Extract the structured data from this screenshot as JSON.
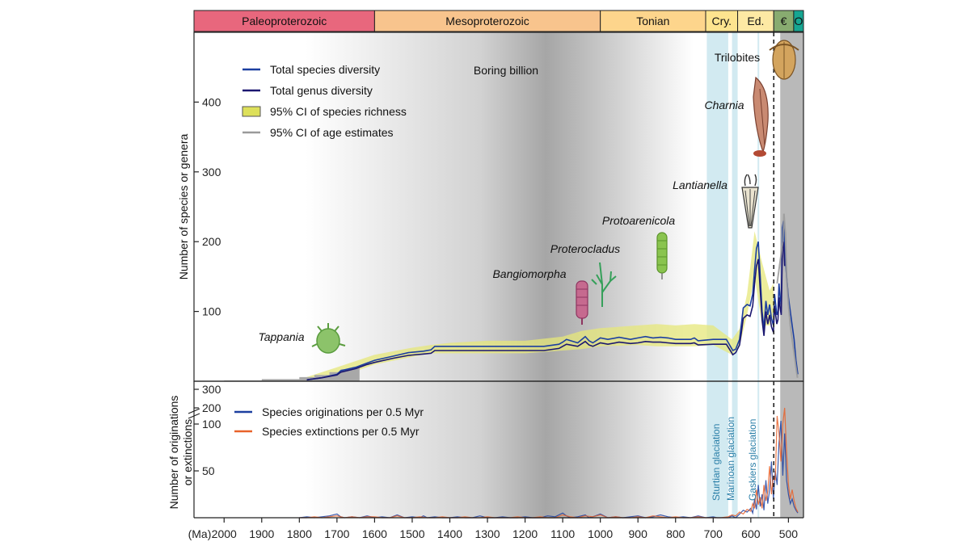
{
  "chart_data": {
    "type": "line",
    "x_unit_label": "(Ma)",
    "xlim": [
      2080,
      460
    ],
    "x_ticks": [
      2000,
      1900,
      1800,
      1700,
      1600,
      1500,
      1400,
      1300,
      1200,
      1100,
      1000,
      900,
      800,
      700,
      600,
      500
    ],
    "periods": [
      {
        "name": "Paleoproterozoic",
        "start": 2080,
        "end": 1600,
        "color": "#e8677d"
      },
      {
        "name": "Mesoproterozoic",
        "start": 1600,
        "end": 1000,
        "color": "#f8c48d"
      },
      {
        "name": "Tonian",
        "start": 1000,
        "end": 720,
        "color": "#fdd58c"
      },
      {
        "name": "Cry.",
        "start": 720,
        "end": 635,
        "color": "#fde48f"
      },
      {
        "name": "Ed.",
        "start": 635,
        "end": 539,
        "color": "#fde9a4"
      },
      {
        "name": "€",
        "start": 539,
        "end": 486,
        "color": "#88ab70"
      },
      {
        "name": "O",
        "start": 486,
        "end": 460,
        "color": "#16a692"
      }
    ],
    "top_panel": {
      "ylabel": "Number of species or genera",
      "ylim": [
        0,
        500
      ],
      "y_ticks": [
        100,
        200,
        300,
        400
      ],
      "legend": [
        {
          "label": "Total species diversity",
          "color": "#1c3fa0",
          "kind": "line"
        },
        {
          "label": "Total genus diversity",
          "color": "#1b1770",
          "kind": "line"
        },
        {
          "label": "95% CI of species richness",
          "color": "#dde05a",
          "kind": "box"
        },
        {
          "label": "95% CI of age estimates",
          "color": "#9a9a9a",
          "kind": "line"
        }
      ],
      "series": [
        {
          "name": "Total species diversity",
          "color": "#1c3fa0",
          "x": [
            1780,
            1740,
            1700,
            1690,
            1650,
            1620,
            1600,
            1550,
            1510,
            1470,
            1450,
            1440,
            1400,
            1350,
            1300,
            1250,
            1200,
            1150,
            1110,
            1100,
            1090,
            1060,
            1040,
            1030,
            1020,
            1000,
            980,
            950,
            920,
            900,
            880,
            860,
            840,
            820,
            800,
            780,
            760,
            750,
            740,
            700,
            680,
            665,
            650,
            648,
            640,
            630,
            625,
            620,
            610,
            602,
            595,
            590,
            585,
            580,
            575,
            570,
            565,
            560,
            555,
            550,
            545,
            540,
            537,
            534,
            531,
            528,
            525,
            522,
            519,
            516,
            513,
            510,
            505,
            500,
            495,
            490,
            485,
            480,
            475
          ],
          "y": [
            2,
            5,
            10,
            15,
            20,
            26,
            30,
            36,
            41,
            43,
            45,
            50,
            50,
            50,
            50,
            50,
            50,
            50,
            53,
            56,
            60,
            55,
            64,
            58,
            55,
            62,
            60,
            63,
            60,
            62,
            64,
            62,
            63,
            62,
            60,
            60,
            60,
            62,
            58,
            60,
            60,
            60,
            46,
            44,
            46,
            60,
            82,
            105,
            110,
            108,
            125,
            160,
            190,
            200,
            150,
            100,
            75,
            115,
            95,
            110,
            90,
            80,
            125,
            110,
            95,
            100,
            140,
            120,
            110,
            220,
            230,
            190,
            150,
            120,
            100,
            80,
            60,
            30,
            10
          ]
        },
        {
          "name": "Total genus diversity",
          "color": "#1b1770",
          "x": [
            1780,
            1740,
            1700,
            1690,
            1650,
            1620,
            1600,
            1550,
            1510,
            1470,
            1450,
            1440,
            1400,
            1350,
            1300,
            1250,
            1200,
            1150,
            1110,
            1100,
            1090,
            1060,
            1040,
            1030,
            1020,
            1000,
            980,
            950,
            920,
            900,
            880,
            860,
            840,
            820,
            800,
            780,
            760,
            750,
            740,
            700,
            680,
            665,
            650,
            648,
            640,
            630,
            625,
            620,
            610,
            602,
            595,
            590,
            585,
            580,
            575,
            570,
            565,
            560,
            555,
            550,
            545,
            540,
            537,
            534,
            531,
            528,
            525,
            522,
            519,
            516,
            513,
            510
          ],
          "y": [
            2,
            5,
            9,
            13,
            18,
            24,
            27,
            33,
            37,
            39,
            40,
            44,
            44,
            44,
            44,
            44,
            44,
            44,
            47,
            50,
            53,
            50,
            57,
            52,
            50,
            55,
            53,
            56,
            54,
            55,
            57,
            56,
            56,
            55,
            54,
            54,
            54,
            55,
            52,
            53,
            53,
            53,
            40,
            38,
            41,
            52,
            70,
            90,
            95,
            93,
            108,
            140,
            165,
            175,
            130,
            88,
            65,
            100,
            82,
            95,
            78,
            70,
            108,
            95,
            82,
            88,
            120,
            105,
            95,
            190,
            200,
            165
          ]
        },
        {
          "name": "95% CI of age estimates",
          "color": "#9a9a9a",
          "x": [
            530,
            525,
            520,
            515,
            512,
            508,
            505,
            500,
            495,
            490,
            485,
            480,
            476
          ],
          "y": [
            140,
            160,
            180,
            200,
            240,
            210,
            150,
            110,
            80,
            60,
            40,
            20,
            5
          ]
        }
      ],
      "ci_band": {
        "name": "95% CI of species richness",
        "color": "#e5e77a",
        "x": [
          1780,
          1700,
          1600,
          1500,
          1450,
          1400,
          1300,
          1200,
          1100,
          1050,
          1000,
          900,
          850,
          800,
          750,
          700,
          650,
          630,
          610,
          590,
          570,
          550,
          540
        ],
        "lower": [
          0,
          5,
          24,
          35,
          40,
          40,
          40,
          40,
          44,
          46,
          50,
          52,
          50,
          50,
          50,
          52,
          38,
          50,
          95,
          150,
          80,
          80,
          95
        ],
        "upper": [
          6,
          20,
          38,
          48,
          52,
          55,
          58,
          58,
          64,
          72,
          76,
          80,
          82,
          80,
          82,
          80,
          60,
          75,
          125,
          215,
          170,
          130,
          140
        ]
      },
      "annotations": [
        {
          "text": "Boring billion",
          "style": "normal"
        },
        {
          "text": "Tappania",
          "style": "italic"
        },
        {
          "text": "Bangiomorpha",
          "style": "italic"
        },
        {
          "text": "Proterocladus",
          "style": "italic"
        },
        {
          "text": "Protoarenicola",
          "style": "italic"
        },
        {
          "text": "Lantianella",
          "style": "italic"
        },
        {
          "text": "Charnia",
          "style": "italic"
        },
        {
          "text": "Trilobites",
          "style": "normal"
        }
      ]
    },
    "bottom_panel": {
      "ylabel_line1": "Number of originations",
      "ylabel_line2": "or extinctions",
      "y_ticks": [
        {
          "value": 50,
          "label": "50"
        },
        {
          "value": 100,
          "label": "100"
        },
        {
          "value": 200,
          "label": "200"
        },
        {
          "value": 300,
          "label": "300"
        }
      ],
      "axis_break": "broken scale above 100",
      "legend": [
        {
          "label": "Species originations per 0.5 Myr",
          "color": "#1c3fa0"
        },
        {
          "label": "Species extinctions per 0.5 Myr",
          "color": "#e8622a"
        }
      ],
      "series": [
        {
          "name": "Species originations per 0.5 Myr",
          "color": "#1c3fa0",
          "x": [
            1800,
            1780,
            1760,
            1740,
            1720,
            1700,
            1690,
            1680,
            1660,
            1640,
            1620,
            1600,
            1580,
            1560,
            1540,
            1520,
            1500,
            1480,
            1470,
            1460,
            1440,
            1420,
            1400,
            1380,
            1360,
            1340,
            1320,
            1300,
            1280,
            1260,
            1240,
            1220,
            1200,
            1180,
            1160,
            1140,
            1120,
            1100,
            1090,
            1080,
            1060,
            1040,
            1030,
            1020,
            1000,
            980,
            960,
            940,
            920,
            900,
            880,
            860,
            840,
            820,
            800,
            780,
            760,
            740,
            720,
            700,
            690,
            680,
            660,
            650,
            640,
            630,
            620,
            610,
            600,
            595,
            590,
            585,
            580,
            575,
            570,
            565,
            560,
            555,
            550,
            545,
            540,
            535,
            530,
            525,
            520,
            515,
            510,
            505,
            500,
            495,
            490,
            485,
            480,
            475
          ],
          "y": [
            0,
            1,
            0,
            1,
            2,
            4,
            1,
            0,
            1,
            0,
            2,
            0,
            1,
            0,
            3,
            0,
            1,
            0,
            2,
            0,
            1,
            0,
            0,
            1,
            0,
            0,
            2,
            0,
            0,
            1,
            0,
            0,
            1,
            0,
            0,
            2,
            1,
            5,
            2,
            0,
            1,
            3,
            0,
            1,
            4,
            0,
            1,
            0,
            1,
            2,
            0,
            1,
            3,
            1,
            0,
            1,
            0,
            2,
            0,
            1,
            0,
            0,
            0,
            2,
            0,
            4,
            8,
            6,
            10,
            5,
            20,
            9,
            35,
            12,
            25,
            8,
            40,
            15,
            30,
            60,
            20,
            50,
            35,
            80,
            120,
            45,
            90,
            40,
            25,
            15,
            20,
            12,
            8,
            5
          ]
        },
        {
          "name": "Species extinctions per 0.5 Myr",
          "color": "#e8622a",
          "x": [
            1800,
            1780,
            1760,
            1740,
            1720,
            1700,
            1680,
            1660,
            1640,
            1620,
            1600,
            1580,
            1560,
            1540,
            1520,
            1500,
            1480,
            1460,
            1440,
            1420,
            1400,
            1380,
            1360,
            1340,
            1320,
            1300,
            1280,
            1260,
            1240,
            1220,
            1200,
            1180,
            1160,
            1140,
            1120,
            1100,
            1080,
            1060,
            1040,
            1020,
            1000,
            980,
            960,
            940,
            920,
            900,
            880,
            860,
            840,
            820,
            800,
            780,
            760,
            740,
            720,
            700,
            680,
            660,
            650,
            640,
            630,
            620,
            610,
            600,
            595,
            590,
            585,
            580,
            575,
            570,
            565,
            560,
            555,
            550,
            545,
            540,
            535,
            530,
            525,
            520,
            515,
            510,
            505,
            500,
            495,
            490,
            485,
            480,
            475
          ],
          "y": [
            0,
            0,
            1,
            0,
            1,
            2,
            0,
            1,
            0,
            1,
            1,
            0,
            0,
            2,
            0,
            0,
            1,
            0,
            0,
            1,
            0,
            0,
            1,
            0,
            0,
            1,
            0,
            0,
            0,
            1,
            0,
            0,
            1,
            0,
            0,
            3,
            1,
            0,
            2,
            1,
            3,
            0,
            1,
            0,
            0,
            1,
            0,
            2,
            1,
            0,
            1,
            0,
            0,
            1,
            0,
            0,
            0,
            1,
            3,
            2,
            6,
            4,
            9,
            7,
            15,
            10,
            30,
            14,
            22,
            10,
            35,
            18,
            28,
            55,
            25,
            45,
            40,
            150,
            90,
            60,
            100,
            200,
            70,
            35,
            20,
            30,
            18,
            10,
            6
          ]
        }
      ]
    },
    "glaciations": [
      {
        "name": "Sturtian glaciation",
        "start": 717,
        "end": 660
      },
      {
        "name": "Marinoan glaciation",
        "start": 650,
        "end": 635
      },
      {
        "name": "Gaskiers glaciation",
        "start": 582,
        "end": 578
      }
    ],
    "dashed_line_x": 539
  }
}
